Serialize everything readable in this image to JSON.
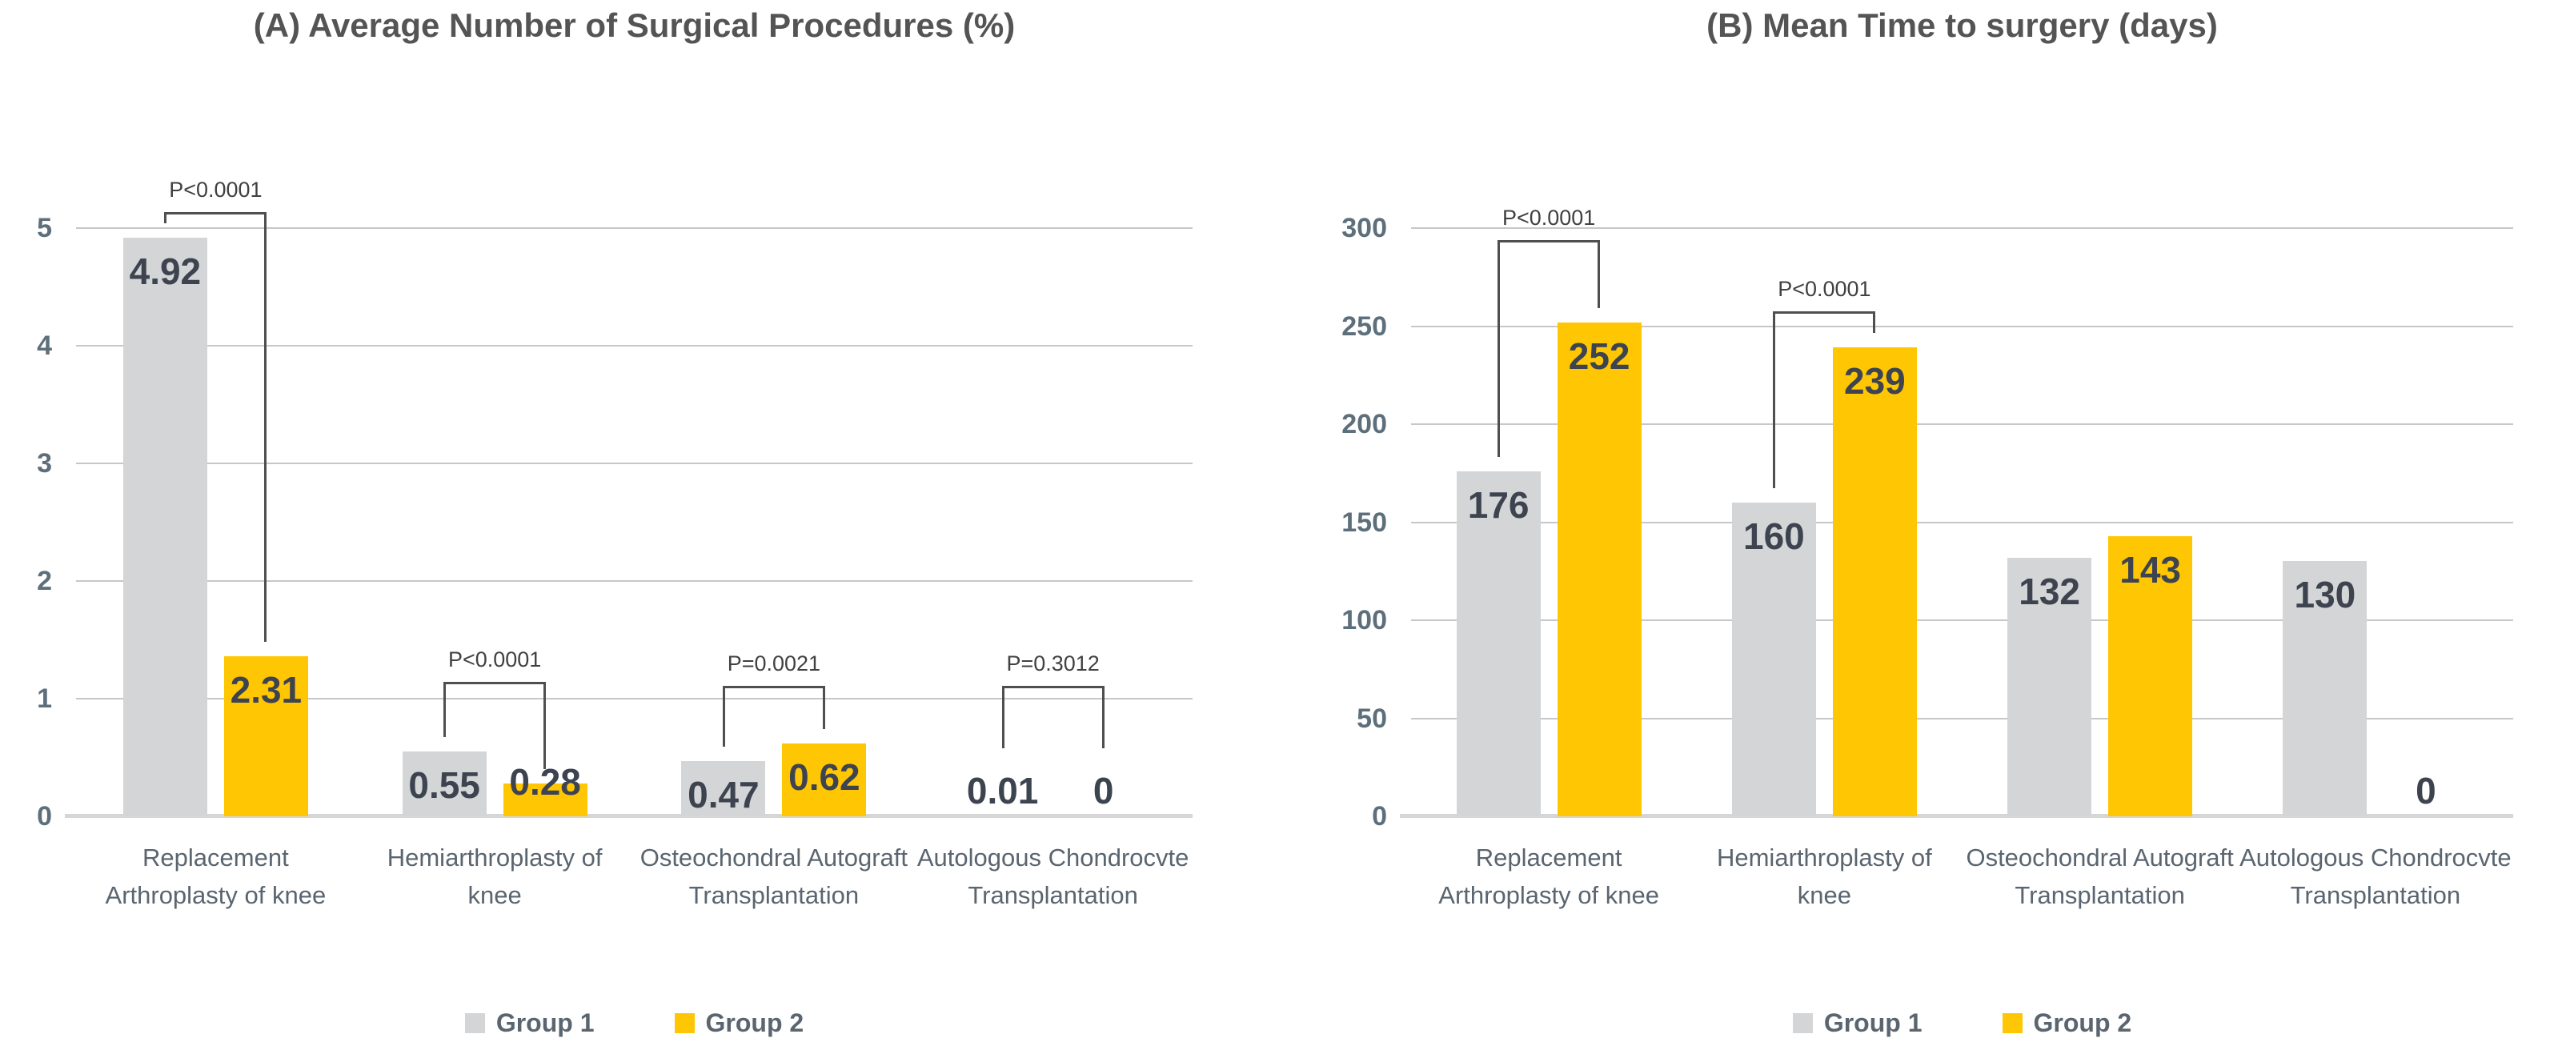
{
  "figure": {
    "background": "#ffffff"
  },
  "chart_data": [
    {
      "type": "bar",
      "panel_label": "A",
      "title": "(A) Average Number of Surgical Procedures (%)",
      "categories": [
        "Replacement Arthroplasty of knee",
        "Hemiarthroplasty of knee",
        "Osteochondral Autograft Transplantation",
        "Autologous Chondrocvte Transplantation"
      ],
      "series": [
        {
          "name": "Group 1",
          "color": "#d3d5d6",
          "values": [
            4.92,
            0.55,
            0.47,
            0.01
          ]
        },
        {
          "name": "Group 2",
          "color": "#ffc603",
          "values": [
            2.31,
            0.28,
            0.62,
            0
          ]
        }
      ],
      "p_values": [
        "P<0.0001",
        "P<0.0001",
        "P=0.0021",
        "P=0.3012"
      ],
      "ylim": [
        0,
        5
      ],
      "ytick_step": 1,
      "ytick_labels": [
        "0",
        "1",
        "2",
        "3",
        "4",
        "5"
      ],
      "grid": true,
      "legend_position": "bottom",
      "value_label_color": "#3d4450"
    },
    {
      "type": "bar",
      "panel_label": "B",
      "title": "(B) Mean Time to surgery (days)",
      "categories": [
        "Replacement Arthroplasty of knee",
        "Hemiarthroplasty of knee",
        "Osteochondral Autograft Transplantation",
        "Autologous Chondrocvte Transplantation"
      ],
      "series": [
        {
          "name": "Group 1",
          "color": "#d3d5d6",
          "values": [
            176,
            160,
            132,
            130
          ]
        },
        {
          "name": "Group 2",
          "color": "#ffc603",
          "values": [
            252,
            239,
            143,
            0
          ]
        }
      ],
      "p_values": [
        "P<0.0001",
        "P<0.0001",
        null,
        null
      ],
      "ylim": [
        0,
        300
      ],
      "ytick_step": 50,
      "ytick_labels": [
        "0",
        "50",
        "100",
        "150",
        "200",
        "250",
        "300"
      ],
      "grid": true,
      "legend_position": "bottom",
      "value_label_color": "#3d4450"
    }
  ]
}
